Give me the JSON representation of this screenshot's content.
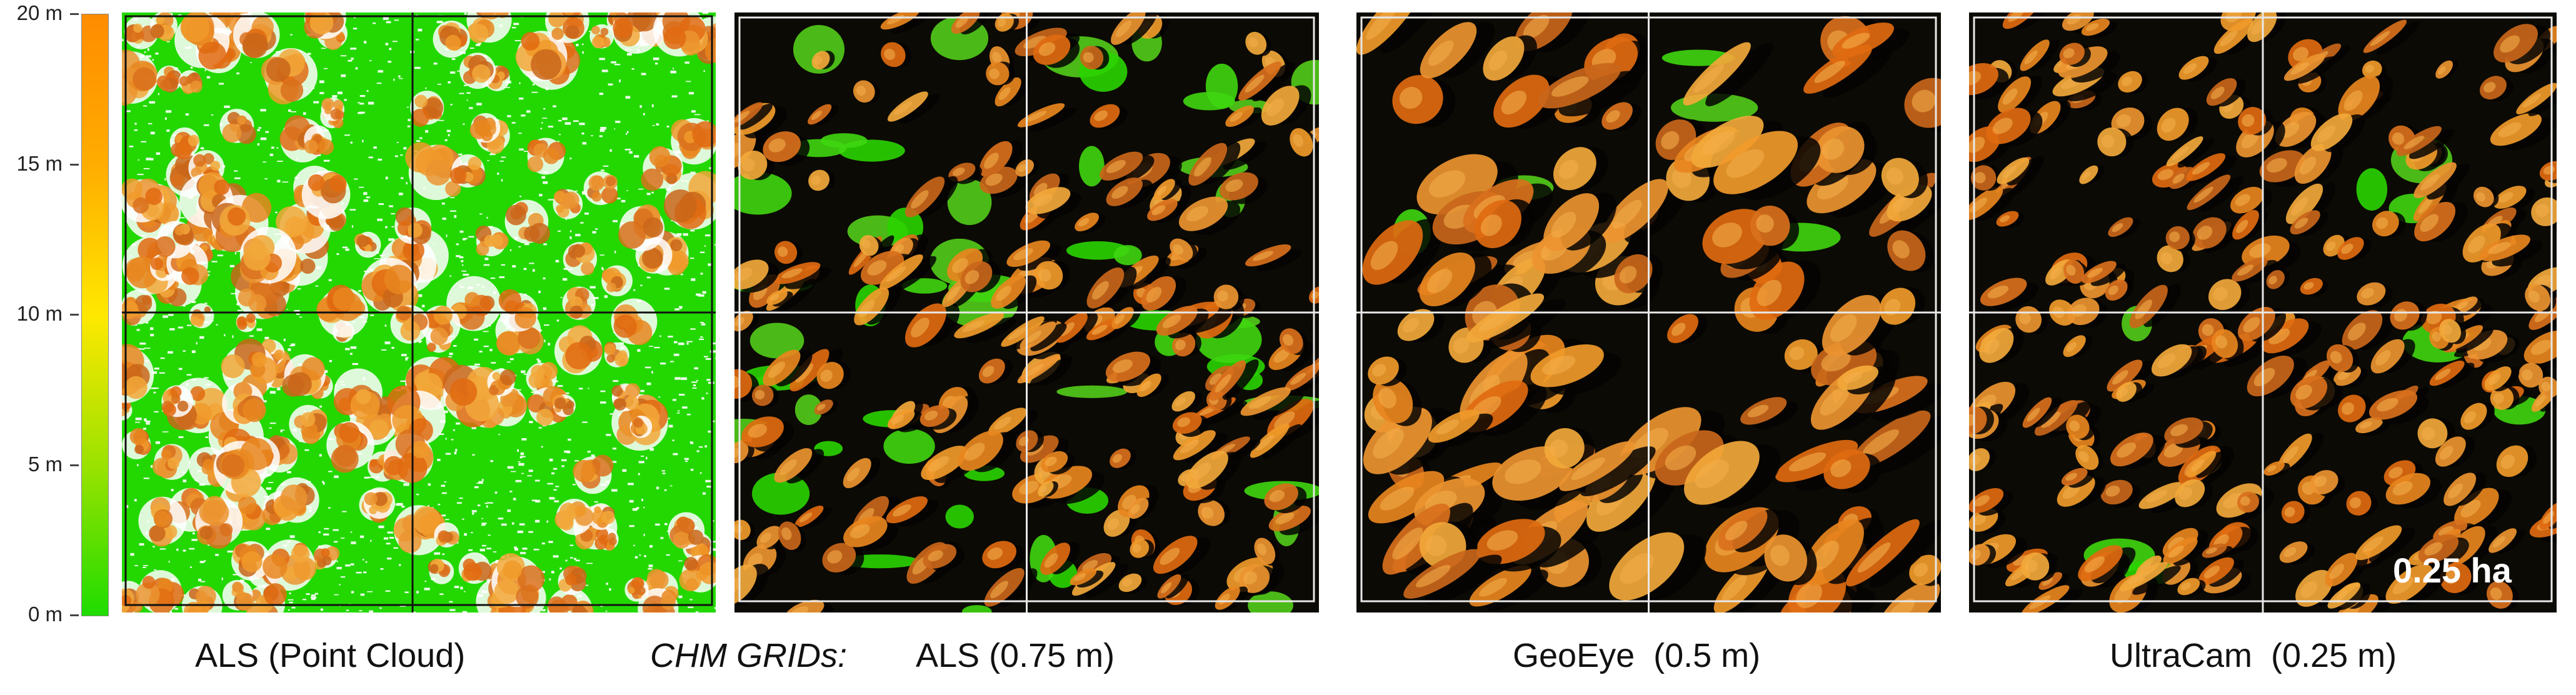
{
  "colorbar": {
    "ticks": [
      "20 m",
      "15 m",
      "10 m",
      "5 m",
      "0 m"
    ],
    "gradient": [
      "#ff8c00",
      "#ffb000",
      "#ffe600",
      "#8fe000",
      "#1fdc00"
    ]
  },
  "panels": [
    {
      "id": "als-point-cloud",
      "caption": "ALS (Point Cloud)"
    },
    {
      "id": "als-chm",
      "caption": "ALS (0.75 m)"
    },
    {
      "id": "geoeye-chm",
      "caption": "GeoEye  (0.5 m)"
    },
    {
      "id": "ultracam-chm",
      "caption": "UltraCam  (0.25 m)"
    }
  ],
  "group_label": "CHM GRIDs:",
  "scale_label": "0.25 ha",
  "colors": {
    "canopy_orange": "#e07a1a",
    "ground_green": "#2edb00",
    "shadow": "#0a0a05",
    "grid_line_dark": "#111111",
    "grid_line_light": "#e8e8e8"
  }
}
